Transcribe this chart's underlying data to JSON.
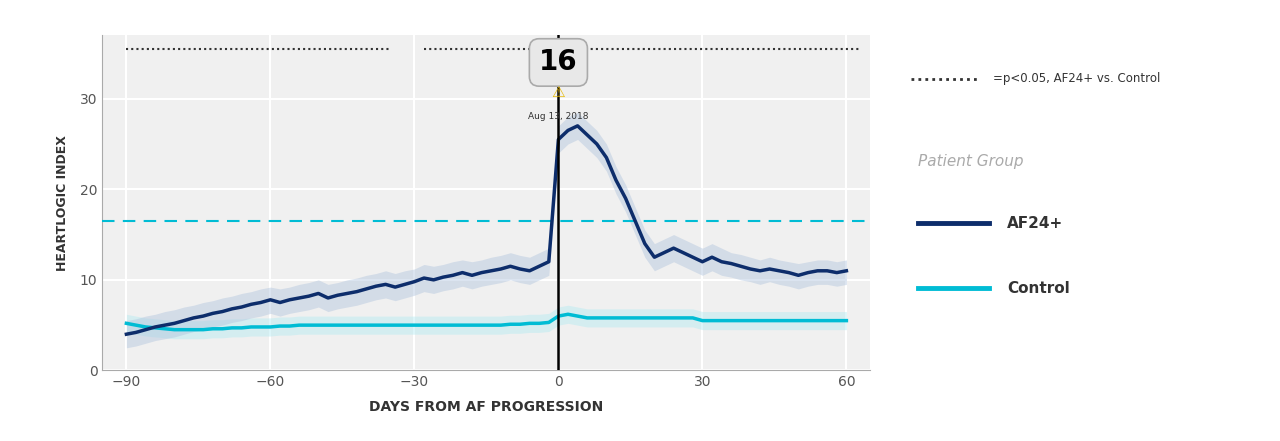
{
  "title": "",
  "xlabel": "DAYS FROM AF PROGRESSION",
  "ylabel": "HEARTLOGIC INDEX",
  "xlim": [
    -95,
    65
  ],
  "ylim": [
    0,
    37
  ],
  "xticks": [
    -90,
    -60,
    -30,
    0,
    30,
    60
  ],
  "yticks": [
    0,
    10,
    20,
    30
  ],
  "bg_color": "#f0f0f0",
  "fig_bg_color": "#ffffff",
  "af24_color": "#0d2d6b",
  "control_color": "#00bcd4",
  "af24_shade": "#b0c4de",
  "control_shade": "#b2ebf2",
  "threshold_color": "#00bcd4",
  "threshold_value": 16.5,
  "vline_x": 0,
  "annotation_value": "16",
  "annotation_date": "Aug 13, 2018",
  "sig_band_y": 35.5,
  "sig_gap_start": -35,
  "sig_gap_end": -28,
  "legend_title": "Patient Group",
  "legend_entries": [
    "AF24+",
    "Control"
  ],
  "sig_label": "=p<0.05, AF24+ vs. Control",
  "af24_x": [
    -90,
    -88,
    -86,
    -84,
    -82,
    -80,
    -78,
    -76,
    -74,
    -72,
    -70,
    -68,
    -66,
    -64,
    -62,
    -60,
    -58,
    -56,
    -54,
    -52,
    -50,
    -48,
    -46,
    -44,
    -42,
    -40,
    -38,
    -36,
    -34,
    -32,
    -30,
    -28,
    -26,
    -24,
    -22,
    -20,
    -18,
    -16,
    -14,
    -12,
    -10,
    -8,
    -6,
    -4,
    -2,
    0,
    2,
    4,
    6,
    8,
    10,
    12,
    14,
    16,
    18,
    20,
    22,
    24,
    26,
    28,
    30,
    32,
    34,
    36,
    38,
    40,
    42,
    44,
    46,
    48,
    50,
    52,
    54,
    56,
    58,
    60
  ],
  "af24_y": [
    4.0,
    4.2,
    4.5,
    4.8,
    5.0,
    5.2,
    5.5,
    5.8,
    6.0,
    6.3,
    6.5,
    6.8,
    7.0,
    7.3,
    7.5,
    7.8,
    7.5,
    7.8,
    8.0,
    8.2,
    8.5,
    8.0,
    8.3,
    8.5,
    8.7,
    9.0,
    9.3,
    9.5,
    9.2,
    9.5,
    9.8,
    10.2,
    10.0,
    10.3,
    10.5,
    10.8,
    10.5,
    10.8,
    11.0,
    11.2,
    11.5,
    11.2,
    11.0,
    11.5,
    12.0,
    25.5,
    26.5,
    27.0,
    26.0,
    25.0,
    23.5,
    21.0,
    19.0,
    16.5,
    14.0,
    12.5,
    13.0,
    13.5,
    13.0,
    12.5,
    12.0,
    12.5,
    12.0,
    11.8,
    11.5,
    11.2,
    11.0,
    11.2,
    11.0,
    10.8,
    10.5,
    10.8,
    11.0,
    11.0,
    10.8,
    11.0
  ],
  "af24_upper": [
    5.5,
    5.7,
    6.0,
    6.2,
    6.5,
    6.7,
    7.0,
    7.2,
    7.5,
    7.7,
    8.0,
    8.2,
    8.5,
    8.7,
    9.0,
    9.2,
    9.0,
    9.2,
    9.5,
    9.7,
    10.0,
    9.5,
    9.7,
    10.0,
    10.2,
    10.5,
    10.7,
    11.0,
    10.7,
    11.0,
    11.2,
    11.7,
    11.5,
    11.7,
    12.0,
    12.2,
    12.0,
    12.2,
    12.5,
    12.7,
    13.0,
    12.7,
    12.5,
    13.0,
    13.5,
    27.0,
    28.0,
    28.5,
    27.5,
    26.5,
    25.0,
    22.5,
    20.5,
    18.0,
    15.5,
    14.0,
    14.5,
    15.0,
    14.5,
    14.0,
    13.5,
    14.0,
    13.5,
    13.0,
    12.8,
    12.5,
    12.2,
    12.5,
    12.2,
    12.0,
    11.8,
    12.0,
    12.2,
    12.2,
    12.0,
    12.2
  ],
  "af24_lower": [
    2.5,
    2.7,
    3.0,
    3.3,
    3.5,
    3.7,
    4.0,
    4.3,
    4.5,
    4.8,
    5.0,
    5.3,
    5.5,
    5.8,
    6.0,
    6.3,
    6.0,
    6.3,
    6.5,
    6.7,
    7.0,
    6.5,
    6.8,
    7.0,
    7.2,
    7.5,
    7.8,
    8.0,
    7.7,
    8.0,
    8.3,
    8.7,
    8.5,
    8.8,
    9.0,
    9.3,
    9.0,
    9.3,
    9.5,
    9.7,
    10.0,
    9.7,
    9.5,
    10.0,
    10.5,
    24.0,
    25.0,
    25.5,
    24.5,
    23.5,
    22.0,
    19.5,
    17.5,
    15.0,
    12.5,
    11.0,
    11.5,
    12.0,
    11.5,
    11.0,
    10.5,
    11.0,
    10.5,
    10.3,
    10.0,
    9.8,
    9.5,
    9.8,
    9.5,
    9.3,
    9.0,
    9.3,
    9.5,
    9.5,
    9.3,
    9.5
  ],
  "ctrl_x": [
    -90,
    -88,
    -86,
    -84,
    -82,
    -80,
    -78,
    -76,
    -74,
    -72,
    -70,
    -68,
    -66,
    -64,
    -62,
    -60,
    -58,
    -56,
    -54,
    -52,
    -50,
    -48,
    -46,
    -44,
    -42,
    -40,
    -38,
    -36,
    -34,
    -32,
    -30,
    -28,
    -26,
    -24,
    -22,
    -20,
    -18,
    -16,
    -14,
    -12,
    -10,
    -8,
    -6,
    -4,
    -2,
    0,
    2,
    4,
    6,
    8,
    10,
    12,
    14,
    16,
    18,
    20,
    22,
    24,
    26,
    28,
    30,
    32,
    34,
    36,
    38,
    40,
    42,
    44,
    46,
    48,
    50,
    52,
    54,
    56,
    58,
    60
  ],
  "ctrl_y": [
    5.2,
    5.0,
    4.8,
    4.7,
    4.6,
    4.5,
    4.5,
    4.5,
    4.5,
    4.6,
    4.6,
    4.7,
    4.7,
    4.8,
    4.8,
    4.8,
    4.9,
    4.9,
    5.0,
    5.0,
    5.0,
    5.0,
    5.0,
    5.0,
    5.0,
    5.0,
    5.0,
    5.0,
    5.0,
    5.0,
    5.0,
    5.0,
    5.0,
    5.0,
    5.0,
    5.0,
    5.0,
    5.0,
    5.0,
    5.0,
    5.1,
    5.1,
    5.2,
    5.2,
    5.3,
    6.0,
    6.2,
    6.0,
    5.8,
    5.8,
    5.8,
    5.8,
    5.8,
    5.8,
    5.8,
    5.8,
    5.8,
    5.8,
    5.8,
    5.8,
    5.5,
    5.5,
    5.5,
    5.5,
    5.5,
    5.5,
    5.5,
    5.5,
    5.5,
    5.5,
    5.5,
    5.5,
    5.5,
    5.5,
    5.5,
    5.5
  ],
  "ctrl_upper": [
    6.2,
    6.0,
    5.8,
    5.7,
    5.6,
    5.5,
    5.5,
    5.5,
    5.5,
    5.6,
    5.6,
    5.7,
    5.7,
    5.8,
    5.8,
    5.8,
    5.9,
    5.9,
    6.0,
    6.0,
    6.0,
    6.0,
    6.0,
    6.0,
    6.0,
    6.0,
    6.0,
    6.0,
    6.0,
    6.0,
    6.0,
    6.0,
    6.0,
    6.0,
    6.0,
    6.0,
    6.0,
    6.0,
    6.0,
    6.0,
    6.1,
    6.1,
    6.2,
    6.2,
    6.3,
    7.0,
    7.2,
    7.0,
    6.8,
    6.8,
    6.8,
    6.8,
    6.8,
    6.8,
    6.8,
    6.8,
    6.8,
    6.8,
    6.8,
    6.8,
    6.5,
    6.5,
    6.5,
    6.5,
    6.5,
    6.5,
    6.5,
    6.5,
    6.5,
    6.5,
    6.5,
    6.5,
    6.5,
    6.5,
    6.5,
    6.5
  ],
  "ctrl_lower": [
    4.2,
    4.0,
    3.8,
    3.7,
    3.6,
    3.5,
    3.5,
    3.5,
    3.5,
    3.6,
    3.6,
    3.7,
    3.7,
    3.8,
    3.8,
    3.8,
    3.9,
    3.9,
    4.0,
    4.0,
    4.0,
    4.0,
    4.0,
    4.0,
    4.0,
    4.0,
    4.0,
    4.0,
    4.0,
    4.0,
    4.0,
    4.0,
    4.0,
    4.0,
    4.0,
    4.0,
    4.0,
    4.0,
    4.0,
    4.0,
    4.1,
    4.1,
    4.2,
    4.2,
    4.3,
    5.0,
    5.2,
    5.0,
    4.8,
    4.8,
    4.8,
    4.8,
    4.8,
    4.8,
    4.8,
    4.8,
    4.8,
    4.8,
    4.8,
    4.8,
    4.5,
    4.5,
    4.5,
    4.5,
    4.5,
    4.5,
    4.5,
    4.5,
    4.5,
    4.5,
    4.5,
    4.5,
    4.5,
    4.5,
    4.5,
    4.5
  ]
}
